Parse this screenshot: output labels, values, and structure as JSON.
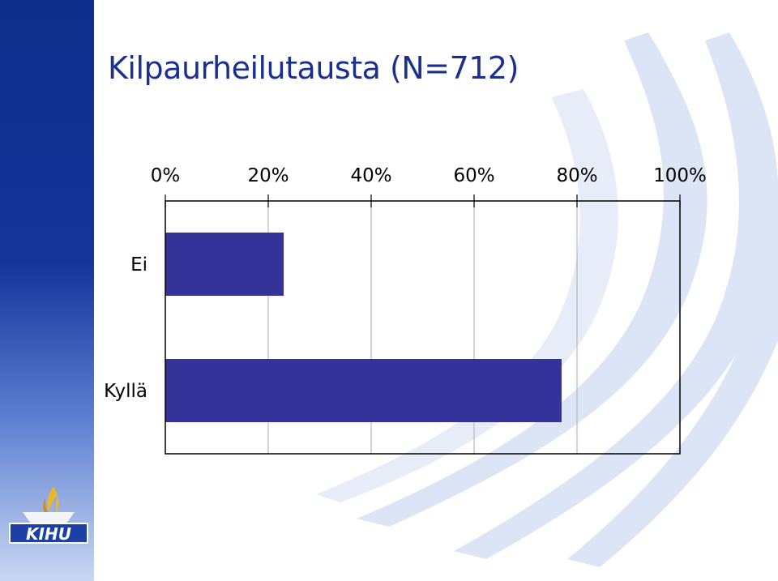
{
  "slide": {
    "title": "Kilpaurheilutausta (N=712)",
    "logo_text": "KIHU"
  },
  "colors": {
    "sidebar": "#14349a",
    "bar": "#333399",
    "title": "#1a2f8f",
    "swoosh": "#dbe5f5"
  },
  "chart_data": {
    "type": "bar",
    "orientation": "horizontal",
    "title": "",
    "categories": [
      "Ei",
      "Kyllä"
    ],
    "values": [
      23,
      77
    ],
    "unit": "%",
    "xlim": [
      0,
      100
    ],
    "xticks": [
      "0%",
      "20%",
      "40%",
      "60%",
      "80%",
      "100%"
    ],
    "x_axis_position": "top",
    "grid": true,
    "legend": "none",
    "bar_color": "#333399"
  }
}
